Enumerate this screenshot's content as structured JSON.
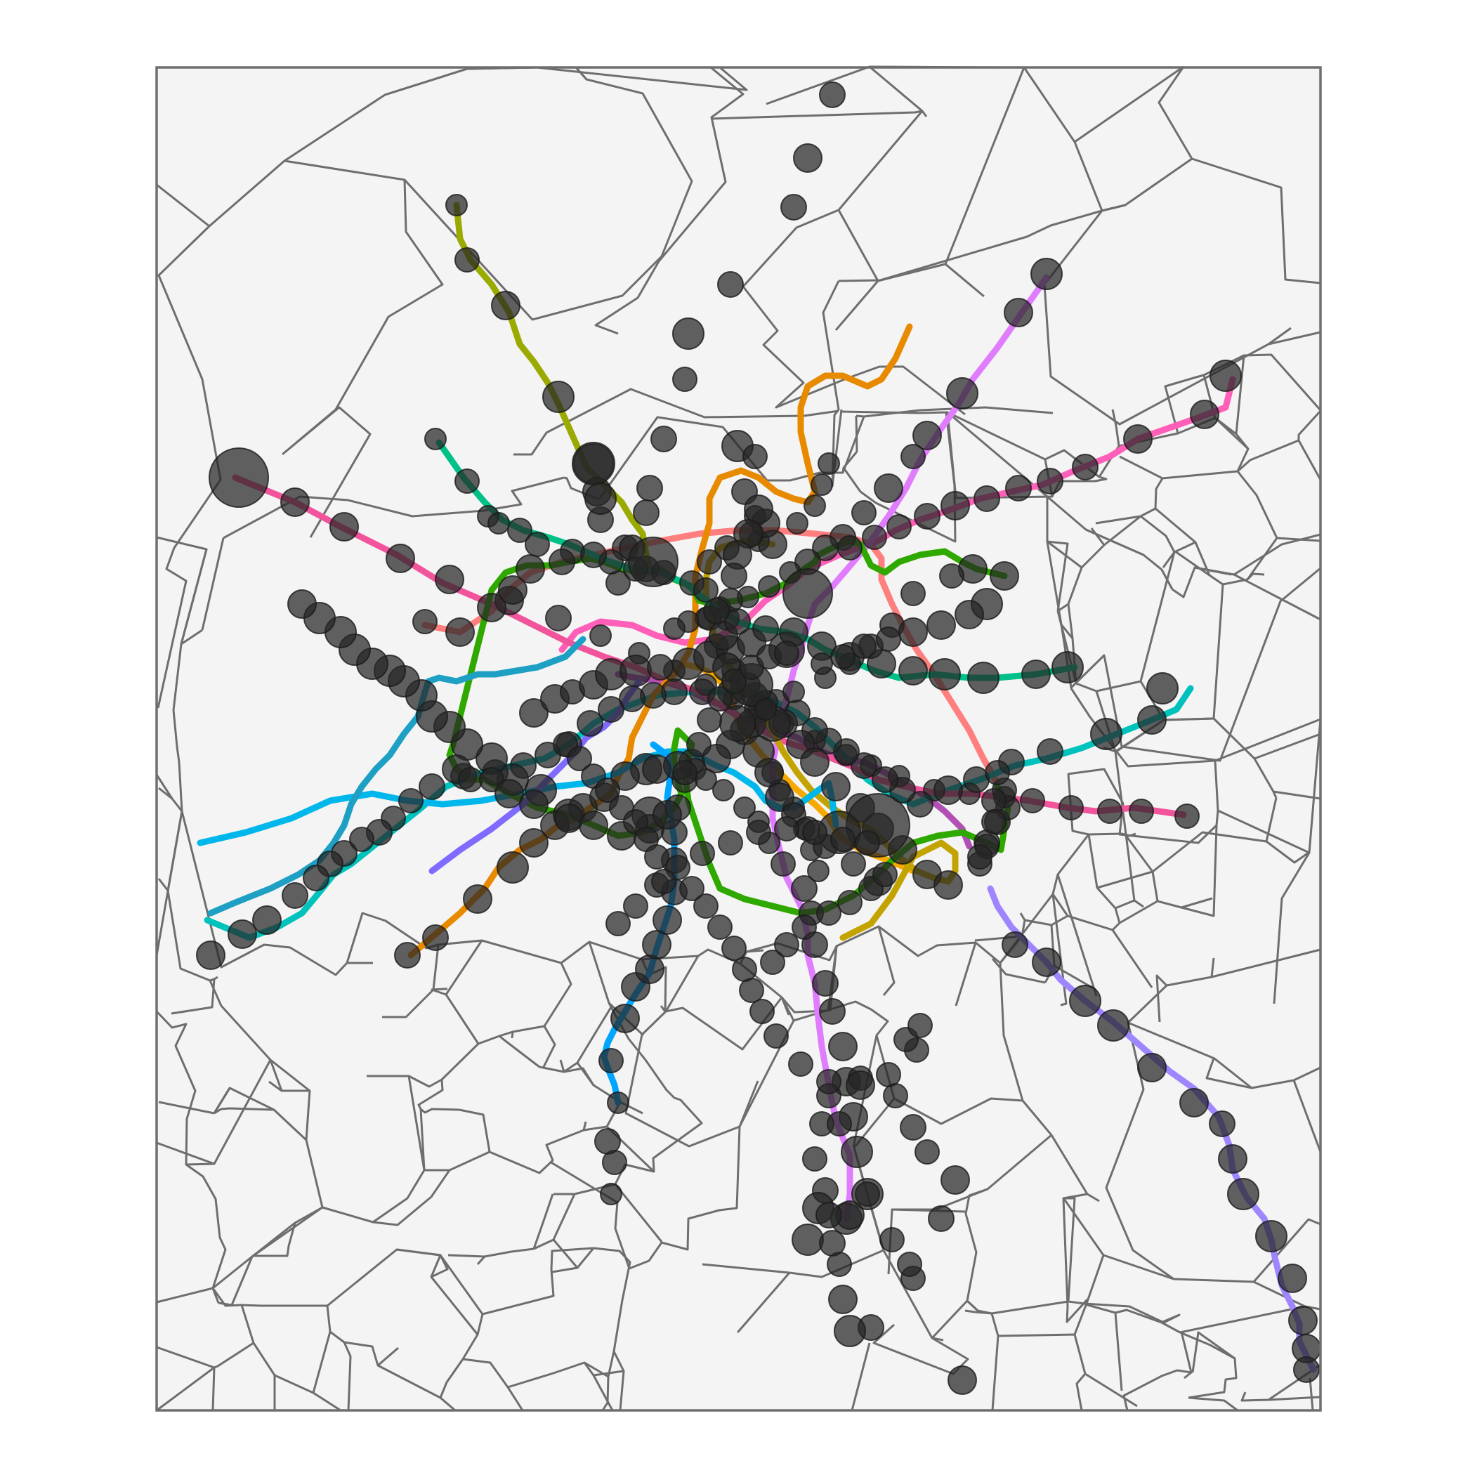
{
  "map": {
    "background": "#f4f4f4",
    "border_color": "#6e6e6e",
    "station_color": "#262626",
    "lines": [
      {
        "id": "line-01",
        "color": "#f7a900"
      },
      {
        "id": "line-02",
        "color": "#ff7f7f"
      },
      {
        "id": "line-03",
        "color": "#9aaa00"
      },
      {
        "id": "line-04",
        "color": "#b24fb6"
      },
      {
        "id": "line-05",
        "color": "#ff5fb8"
      },
      {
        "id": "line-06",
        "color": "#00c2bd"
      },
      {
        "id": "line-07",
        "color": "#f2549c"
      },
      {
        "id": "line-08",
        "color": "#e07dff"
      },
      {
        "id": "line-09",
        "color": "#c3a300"
      },
      {
        "id": "line-10",
        "color": "#e88a00"
      },
      {
        "id": "line-11",
        "color": "#00b7eb"
      },
      {
        "id": "line-12",
        "color": "#2fa800"
      },
      {
        "id": "line-13",
        "color": "#00c08a"
      },
      {
        "id": "line-14",
        "color": "#7f6bff"
      },
      {
        "id": "line-15",
        "color": "#9f86ff"
      },
      {
        "id": "line-16",
        "color": "#00a5ff"
      },
      {
        "id": "line-17",
        "color": "#1da0c4"
      }
    ]
  }
}
